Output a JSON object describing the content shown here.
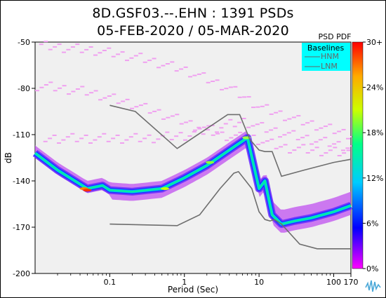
{
  "header": {
    "title_line1": "8D.GSF03.--.EHN : 1391 PSDs",
    "title_line2": "05-FEB-2020 / 05-MAR-2020"
  },
  "chart_data": {
    "type": "heatmap",
    "title": "8D.GSF03.--.EHN : 1391 PSDs",
    "subtitle": "05-FEB-2020 / 05-MAR-2020",
    "xlabel": "Period (Sec)",
    "ylabel": "dB",
    "x_scale": "log",
    "xlim": [
      0.01,
      170
    ],
    "ylim": [
      -200,
      -50
    ],
    "x_ticks": [
      {
        "value": 0.1,
        "label": "0.1"
      },
      {
        "value": 1,
        "label": "1"
      },
      {
        "value": 10,
        "label": "10"
      },
      {
        "value": 100,
        "label": "100"
      },
      {
        "value": 170,
        "label": "170"
      }
    ],
    "y_ticks": [
      -50,
      -80,
      -110,
      -140,
      -170,
      -200
    ],
    "legend": {
      "title": "Baselines",
      "entries": [
        "HNM",
        "LNM"
      ],
      "placement": "top-right"
    },
    "colorbar": {
      "title": "PSD PDF",
      "ticks": [
        "30+",
        "24%",
        "18%",
        "12%",
        "6%",
        "0%"
      ],
      "colors": [
        "#ff00ff",
        "#0000ff",
        "#00ccff",
        "#00ff88",
        "#ccff00",
        "#ffaa00",
        "#ff0000"
      ]
    },
    "series": [
      {
        "name": "HNM",
        "x": [
          0.1,
          0.22,
          0.8,
          3.8,
          5.5,
          7.5,
          10,
          12,
          15,
          20,
          40,
          100,
          170
        ],
        "y": [
          -91,
          -95,
          -119,
          -97,
          -97,
          -113,
          -120,
          -121,
          -121,
          -137,
          -133,
          -128,
          -126
        ]
      },
      {
        "name": "LNM",
        "x": [
          0.1,
          0.8,
          1.6,
          3,
          4.6,
          5.3,
          8,
          10,
          12,
          14,
          16,
          20,
          35,
          60,
          100,
          170
        ],
        "y": [
          -168,
          -169,
          -162,
          -145,
          -135,
          -134,
          -145,
          -160,
          -165,
          -166,
          -165,
          -168,
          -181,
          -184,
          -184,
          -184
        ]
      },
      {
        "name": "mode",
        "x": [
          0.01,
          0.02,
          0.05,
          0.08,
          0.1,
          0.2,
          0.5,
          1,
          2,
          4,
          7,
          10,
          12,
          15,
          20,
          30,
          50,
          100,
          170
        ],
        "y": [
          -122,
          -133,
          -145,
          -143,
          -146,
          -147,
          -145,
          -138,
          -130,
          -120,
          -112,
          -145,
          -140,
          -162,
          -168,
          -166,
          -164,
          -160,
          -156
        ]
      }
    ]
  }
}
